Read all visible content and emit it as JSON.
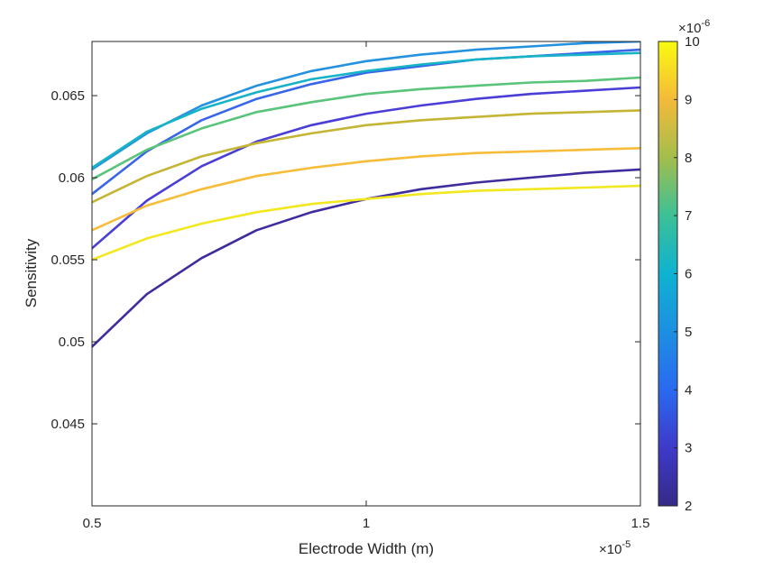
{
  "chart_data": {
    "type": "line",
    "xlabel": "Electrode Width (m)",
    "ylabel": "Sensitivity",
    "x_exponent": "×10",
    "x_exponent_power": "-5",
    "xlim": [
      0.5,
      1.5
    ],
    "ylim": [
      0.04,
      0.0683
    ],
    "x_ticks": [
      0.5,
      1,
      1.5
    ],
    "x_tick_labels": [
      "0.5",
      "1",
      "1.5"
    ],
    "y_ticks": [
      0.045,
      0.05,
      0.055,
      0.06,
      0.065
    ],
    "y_tick_labels": [
      "0.045",
      "0.05",
      "0.055",
      "0.06",
      "0.065"
    ],
    "x": [
      0.5,
      0.6,
      0.7,
      0.8,
      0.9,
      1.0,
      1.1,
      1.2,
      1.3,
      1.4,
      1.5
    ],
    "grid": false,
    "colorbar": {
      "ticks": [
        2,
        3,
        4,
        5,
        6,
        7,
        8,
        9,
        10
      ],
      "tick_labels": [
        "2",
        "3",
        "4",
        "5",
        "6",
        "7",
        "8",
        "9",
        "10"
      ],
      "range": [
        2,
        10
      ],
      "exponent": "×10",
      "exponent_power": "-6",
      "colormap": "parula"
    },
    "series": [
      {
        "cval": 2,
        "color": "#3f2d9f",
        "values": [
          0.0497,
          0.0529,
          0.0551,
          0.0568,
          0.0579,
          0.0587,
          0.0593,
          0.0597,
          0.06,
          0.0603,
          0.0605
        ]
      },
      {
        "cval": 3,
        "color": "#4a3ed6",
        "values": [
          0.0557,
          0.0586,
          0.0607,
          0.0622,
          0.0632,
          0.0639,
          0.0644,
          0.0648,
          0.0651,
          0.0653,
          0.0655
        ]
      },
      {
        "cval": 4,
        "color": "#3966e8",
        "values": [
          0.059,
          0.0616,
          0.0635,
          0.0648,
          0.0657,
          0.0664,
          0.0668,
          0.0672,
          0.0674,
          0.0676,
          0.0678
        ]
      },
      {
        "cval": 5,
        "color": "#2592e0",
        "values": [
          0.0605,
          0.0627,
          0.0644,
          0.0656,
          0.0665,
          0.0671,
          0.0675,
          0.0678,
          0.068,
          0.0682,
          0.0683
        ]
      },
      {
        "cval": 6,
        "color": "#17b3c6",
        "values": [
          0.0606,
          0.0628,
          0.0642,
          0.0652,
          0.066,
          0.0665,
          0.0669,
          0.0672,
          0.0674,
          0.0675,
          0.0676
        ]
      },
      {
        "cval": 7,
        "color": "#59c47a",
        "values": [
          0.0599,
          0.0617,
          0.063,
          0.064,
          0.0646,
          0.0651,
          0.0654,
          0.0656,
          0.0658,
          0.0659,
          0.0661
        ]
      },
      {
        "cval": 8,
        "color": "#c4b534",
        "values": [
          0.0585,
          0.0601,
          0.0613,
          0.0621,
          0.0627,
          0.0632,
          0.0635,
          0.0637,
          0.0639,
          0.064,
          0.0641
        ]
      },
      {
        "cval": 9,
        "color": "#f7bd3a",
        "values": [
          0.0568,
          0.0583,
          0.0593,
          0.0601,
          0.0606,
          0.061,
          0.0613,
          0.0615,
          0.0616,
          0.0617,
          0.0618
        ]
      },
      {
        "cval": 10,
        "color": "#f2e820",
        "values": [
          0.055,
          0.0563,
          0.0572,
          0.0579,
          0.0584,
          0.0587,
          0.059,
          0.0592,
          0.0593,
          0.0594,
          0.0595
        ]
      }
    ]
  }
}
